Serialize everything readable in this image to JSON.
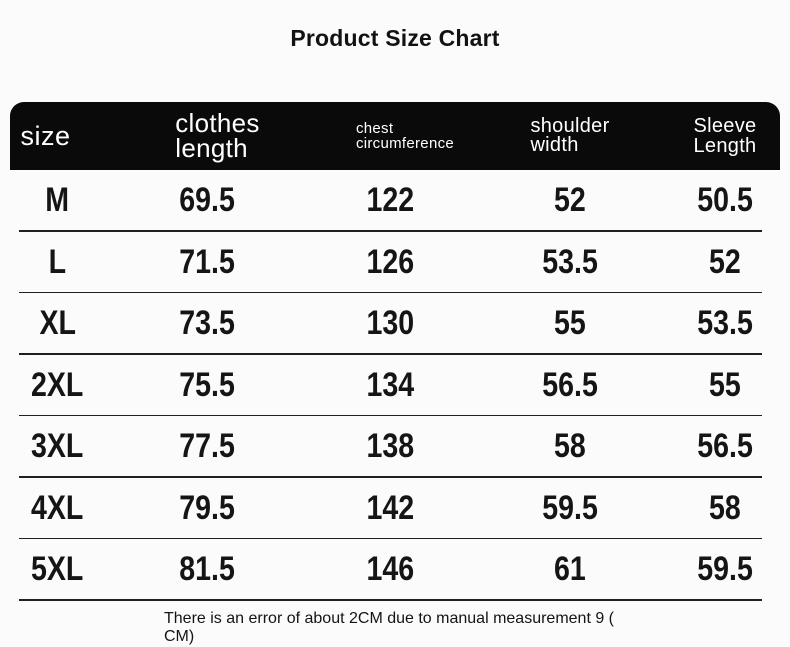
{
  "title": "Product Size Chart",
  "table": {
    "columns": [
      {
        "lines": [
          "size",
          ""
        ]
      },
      {
        "lines": [
          "clothes",
          "length"
        ]
      },
      {
        "lines": [
          "chest",
          "circumference"
        ]
      },
      {
        "lines": [
          "shoulder",
          "width"
        ]
      },
      {
        "lines": [
          "Sleeve",
          "Length"
        ]
      }
    ],
    "rows": [
      [
        "M",
        "69.5",
        "122",
        "52",
        "50.5"
      ],
      [
        "L",
        "71.5",
        "126",
        "53.5",
        "52"
      ],
      [
        "XL",
        "73.5",
        "130",
        "55",
        "53.5"
      ],
      [
        "2XL",
        "75.5",
        "134",
        "56.5",
        "55"
      ],
      [
        "3XL",
        "77.5",
        "138",
        "58",
        "56.5"
      ],
      [
        "4XL",
        "79.5",
        "142",
        "59.5",
        "58"
      ],
      [
        "5XL",
        "81.5",
        "146",
        "61",
        "59.5"
      ]
    ]
  },
  "footer": {
    "lines": [
      "There is an error of about 2CM due to manual measurement 9 (",
      "CM)"
    ]
  },
  "colors": {
    "header_bg": "#0a0a0a",
    "header_text": "#ffffff",
    "body_text": "#151515",
    "divider": "#1f1f1f",
    "background": "#fbfbfb"
  },
  "chart_data": {
    "type": "table",
    "title": "Product Size Chart",
    "columns": [
      "size",
      "clothes length",
      "chest circumference",
      "shoulder width",
      "Sleeve Length"
    ],
    "rows": [
      [
        "M",
        69.5,
        122,
        52,
        50.5
      ],
      [
        "L",
        71.5,
        126,
        53.5,
        52
      ],
      [
        "XL",
        73.5,
        130,
        55,
        53.5
      ],
      [
        "2XL",
        75.5,
        134,
        56.5,
        55
      ],
      [
        "3XL",
        77.5,
        138,
        58,
        56.5
      ],
      [
        "4XL",
        79.5,
        142,
        59.5,
        58
      ],
      [
        "5XL",
        81.5,
        146,
        61,
        59.5
      ]
    ],
    "unit": "CM",
    "note": "There is an error of about 2CM due to manual measurement 9 ( CM)"
  }
}
